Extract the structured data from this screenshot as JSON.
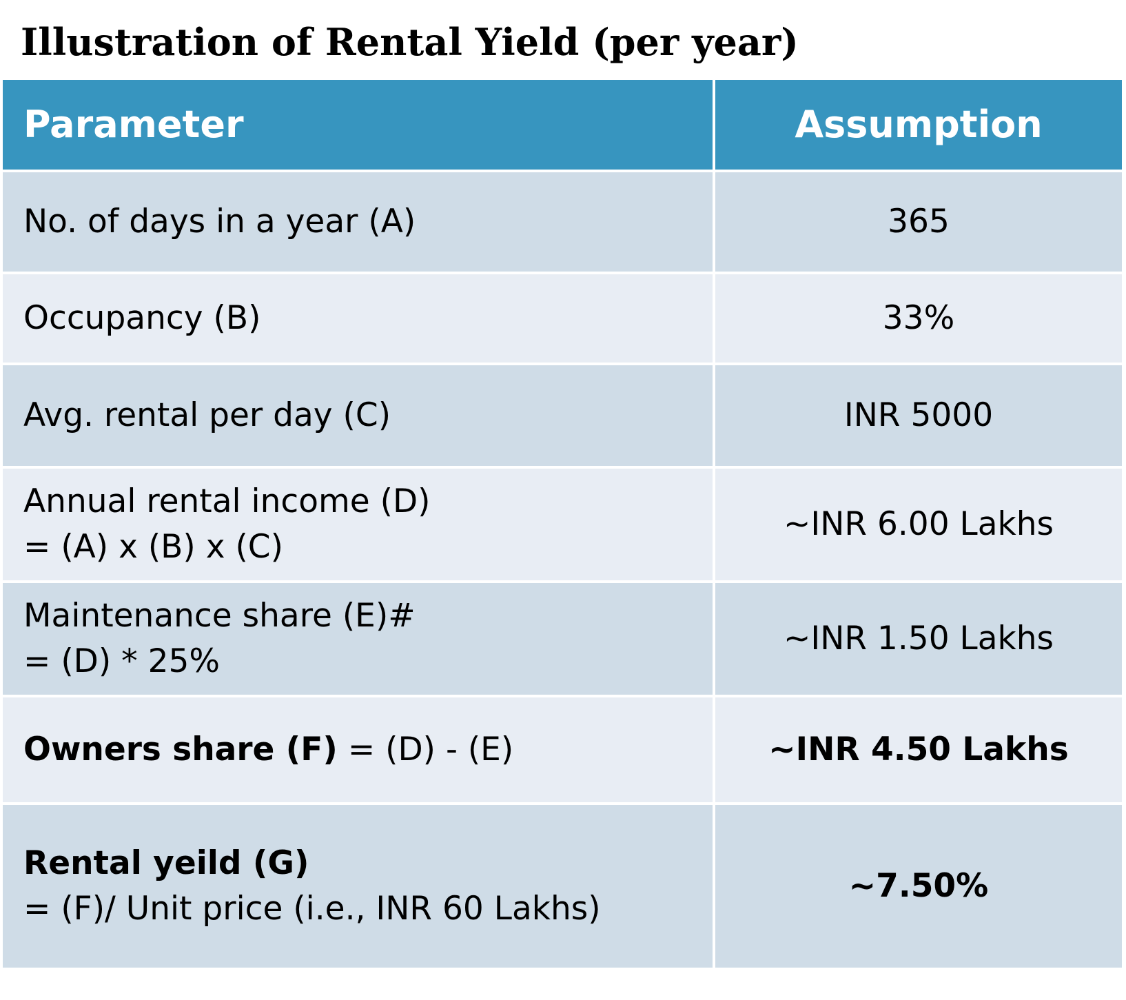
{
  "title": "Illustration of Rental Yield (per year)",
  "header": {
    "parameter": "Parameter",
    "assumption": "Assumption"
  },
  "rows": [
    {
      "parameter": "No. of days in a year (A)",
      "value": "365"
    },
    {
      "parameter": "Occupancy (B)",
      "value": "33%"
    },
    {
      "parameter": "Avg. rental per day (C)",
      "value": "INR 5000"
    },
    {
      "parameter": "Annual rental income (D)",
      "formula": "= (A) x (B) x (C)",
      "value": "~INR 6.00 Lakhs"
    },
    {
      "parameter": "Maintenance share (E)#",
      "formula": "= (D) * 25%",
      "value": "~INR 1.50 Lakhs"
    },
    {
      "parameter": "Owners share (F)",
      "formula": " = (D) - (E)",
      "value": "~INR 4.50 Lakhs"
    },
    {
      "parameter": "Rental yeild (G)",
      "formula": "= (F)/ Unit price (i.e., INR 60 Lakhs)",
      "value": "~7.50%"
    }
  ]
}
